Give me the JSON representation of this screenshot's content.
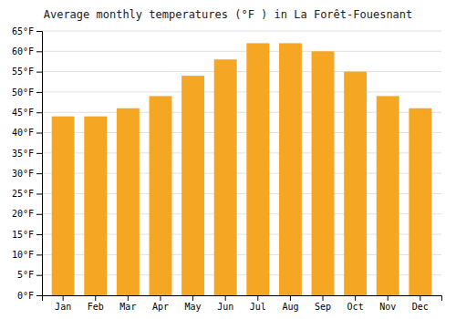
{
  "chart_data": {
    "type": "bar",
    "title": "Average monthly temperatures (°F ) in La Forêt-Fouesnant",
    "categories": [
      "Jan",
      "Feb",
      "Mar",
      "Apr",
      "May",
      "Jun",
      "Jul",
      "Aug",
      "Sep",
      "Oct",
      "Nov",
      "Dec"
    ],
    "values": [
      44,
      44,
      46,
      49,
      54,
      58,
      62,
      62,
      60,
      55,
      49,
      46
    ],
    "color": "#F5A623",
    "ylim": [
      0,
      65
    ],
    "yticks": [
      {
        "value": 0,
        "label": "0°F"
      },
      {
        "value": 5,
        "label": "5°F"
      },
      {
        "value": 10,
        "label": "10°F"
      },
      {
        "value": 15,
        "label": "15°F"
      },
      {
        "value": 20,
        "label": "20°F"
      },
      {
        "value": 25,
        "label": "25°F"
      },
      {
        "value": 30,
        "label": "30°F"
      },
      {
        "value": 35,
        "label": "35°F"
      },
      {
        "value": 40,
        "label": "40°F"
      },
      {
        "value": 45,
        "label": "45°F"
      },
      {
        "value": 50,
        "label": "50°F"
      },
      {
        "value": 55,
        "label": "55°F"
      },
      {
        "value": 60,
        "label": "60°F"
      },
      {
        "value": 65,
        "label": "65°F"
      }
    ],
    "grid": true
  }
}
